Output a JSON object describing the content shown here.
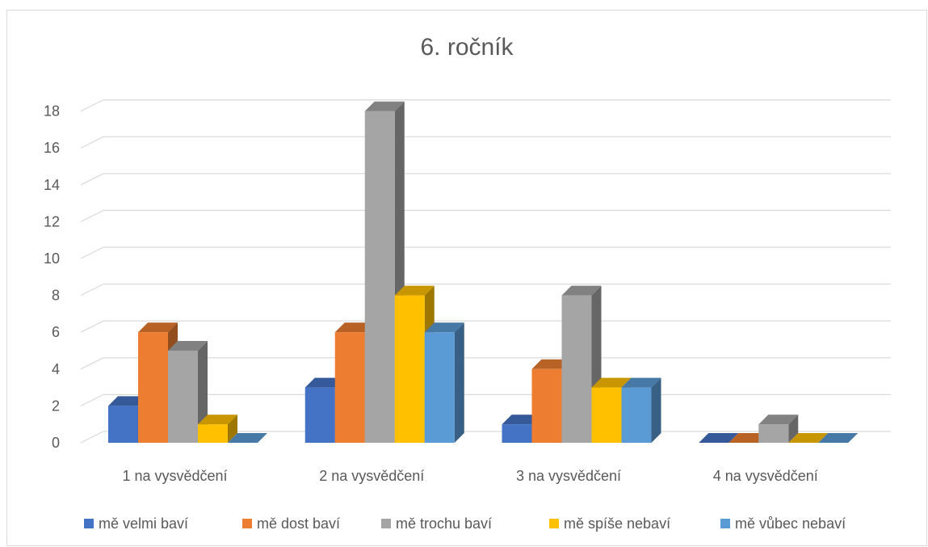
{
  "chart_data": {
    "type": "bar",
    "title": "6. ročník",
    "categories": [
      "1 na vysvědčení",
      "2 na vysvědčení",
      "3 na vysvědčení",
      "4 na vysvědčení"
    ],
    "series": [
      {
        "name": "mě velmi baví",
        "values": [
          2,
          3,
          1,
          0
        ],
        "color": "#4472C4"
      },
      {
        "name": "mě dost baví",
        "values": [
          6,
          6,
          4,
          0
        ],
        "color": "#ED7D31"
      },
      {
        "name": "mě trochu baví",
        "values": [
          5,
          18,
          8,
          1
        ],
        "color": "#A5A5A5"
      },
      {
        "name": "mě spíše nebaví",
        "values": [
          1,
          8,
          3,
          0
        ],
        "color": "#FFC000"
      },
      {
        "name": "mě vůbec nebaví",
        "values": [
          0,
          6,
          3,
          0
        ],
        "color": "#5B9BD5"
      }
    ],
    "ylim": [
      0,
      18
    ],
    "yticks": [
      "0",
      "2",
      "4",
      "6",
      "8",
      "10",
      "12",
      "14",
      "16",
      "18"
    ],
    "grid": true,
    "legend": "bottom",
    "style": "3d-clustered-column"
  }
}
